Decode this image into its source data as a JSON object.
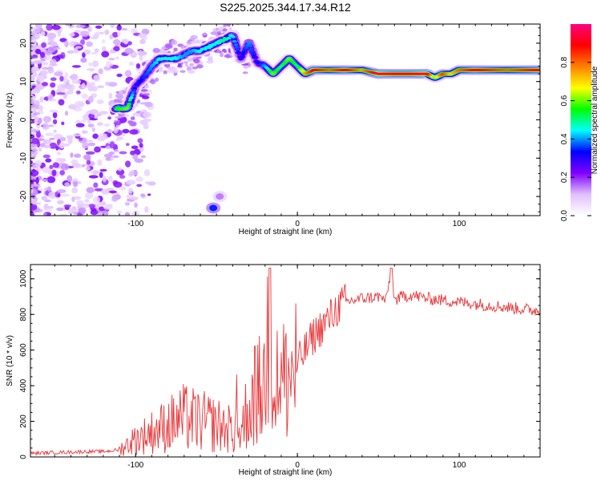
{
  "title": "S225.2025.344.17.34.R12",
  "chart_data": [
    {
      "type": "heatmap",
      "name": "spectrogram",
      "xlabel": "Height of straight line (km)",
      "ylabel": "Frequency (Hz)",
      "xlim": [
        -165,
        150
      ],
      "ylim": [
        -25,
        25
      ],
      "xticks": [
        -100,
        0,
        100
      ],
      "yticks": [
        -20,
        -10,
        0,
        10,
        20
      ],
      "colorbar": {
        "label": "Normalized spectral amplitude",
        "range": [
          0.0,
          1.0
        ],
        "ticks": [
          0.0,
          0.2,
          0.4,
          0.6,
          0.8
        ],
        "stops": [
          "#ffffff",
          "#e0c0ff",
          "#8000ff",
          "#0000ff",
          "#00ffff",
          "#00ff00",
          "#ffff00",
          "#ff8000",
          "#ff0000",
          "#ff0080"
        ]
      },
      "ridge": {
        "x": [
          -112,
          -105,
          -100,
          -95,
          -90,
          -85,
          -80,
          -75,
          -70,
          -65,
          -60,
          -55,
          -50,
          -45,
          -40,
          -35,
          -30,
          -25,
          -20,
          -15,
          -10,
          -5,
          0,
          5,
          10,
          20,
          30,
          40,
          50,
          60,
          70,
          80,
          85,
          90,
          95,
          100,
          110,
          120,
          130,
          140,
          150
        ],
        "freq": [
          3,
          3,
          9,
          11,
          14,
          16,
          16,
          16,
          17,
          18,
          18,
          19,
          20,
          21,
          22,
          16,
          20,
          15,
          14,
          12,
          14,
          16,
          14,
          12,
          13,
          13,
          13,
          13,
          12,
          12,
          12,
          12,
          11,
          12,
          12,
          13,
          13,
          13,
          13,
          13,
          13
        ],
        "amplitude": [
          0.55,
          0.6,
          0.3,
          0.35,
          0.4,
          0.45,
          0.45,
          0.45,
          0.4,
          0.4,
          0.45,
          0.45,
          0.45,
          0.5,
          0.45,
          0.3,
          0.4,
          0.3,
          0.4,
          0.6,
          0.5,
          0.6,
          0.5,
          0.75,
          0.9,
          0.8,
          0.9,
          0.75,
          0.95,
          0.9,
          0.9,
          0.95,
          0.6,
          0.85,
          0.7,
          0.8,
          0.9,
          0.85,
          0.8,
          0.85,
          0.9
        ]
      },
      "blobs": [
        {
          "x": -52,
          "freq": -23,
          "amplitude": 0.35
        },
        {
          "x": -48,
          "freq": -20,
          "amplitude": 0.15
        }
      ]
    },
    {
      "type": "line",
      "name": "snr",
      "xlabel": "Height of straight line (km)",
      "ylabel": "SNR (10 * v/v)",
      "xlim": [
        -165,
        150
      ],
      "ylim": [
        0,
        1080
      ],
      "xticks": [
        -100,
        0,
        100
      ],
      "yticks": [
        0,
        200,
        400,
        600,
        800,
        1000
      ],
      "color": "#e8373a",
      "series": [
        {
          "name": "SNR",
          "x": [
            -165,
            -150,
            -130,
            -120,
            -110,
            -100,
            -90,
            -80,
            -70,
            -60,
            -50,
            -40,
            -35,
            -30,
            -25,
            -20,
            -17,
            -15,
            -10,
            -5,
            0,
            5,
            10,
            15,
            20,
            25,
            30,
            40,
            50,
            55,
            58,
            60,
            65,
            70,
            80,
            90,
            100,
            110,
            120,
            130,
            140,
            150
          ],
          "y": [
            20,
            25,
            30,
            30,
            40,
            100,
            140,
            180,
            220,
            200,
            180,
            150,
            140,
            300,
            350,
            400,
            1060,
            480,
            420,
            450,
            520,
            600,
            680,
            730,
            780,
            840,
            870,
            890,
            900,
            880,
            1060,
            880,
            900,
            910,
            890,
            880,
            870,
            860,
            850,
            840,
            830,
            820
          ]
        }
      ]
    }
  ]
}
